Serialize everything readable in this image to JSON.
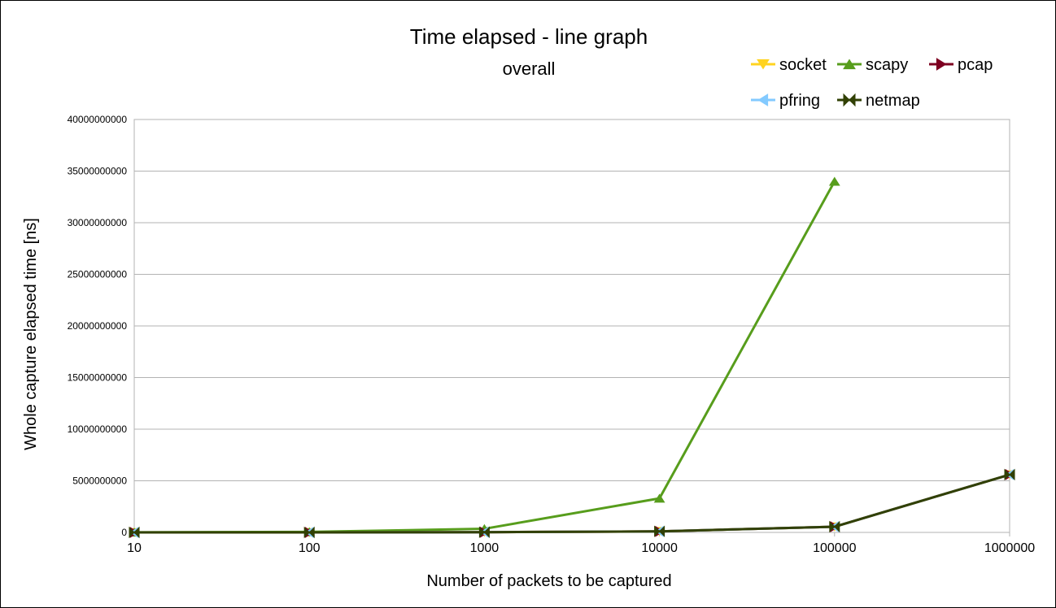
{
  "chart_data": {
    "type": "line",
    "title": "Time elapsed - line graph",
    "subtitle": "overall",
    "xlabel": "Number of packets to be captured",
    "ylabel": "Whole capture elapsed time [ns]",
    "categories": [
      "10",
      "100",
      "1000",
      "10000",
      "100000",
      "1000000"
    ],
    "ylim": [
      0,
      40000000000
    ],
    "yticks": [
      "0",
      "5000000000",
      "10000000000",
      "15000000000",
      "20000000000",
      "25000000000",
      "30000000000",
      "35000000000",
      "40000000000"
    ],
    "grid": true,
    "legend_position": "top-right",
    "series": [
      {
        "name": "socket",
        "color": "#ffd320",
        "marker": "triangle-down",
        "values": [
          0,
          0,
          20000000,
          100000000,
          550000000,
          5600000000
        ]
      },
      {
        "name": "scapy",
        "color": "#579d1c",
        "marker": "triangle-up",
        "values": [
          10000000,
          50000000,
          350000000,
          3300000000,
          34000000000,
          null
        ]
      },
      {
        "name": "pcap",
        "color": "#7e0021",
        "marker": "triangle-right",
        "values": [
          0,
          0,
          20000000,
          100000000,
          550000000,
          5600000000
        ]
      },
      {
        "name": "pfring",
        "color": "#83caff",
        "marker": "triangle-left",
        "values": [
          0,
          0,
          20000000,
          100000000,
          550000000,
          5600000000
        ]
      },
      {
        "name": "netmap",
        "color": "#314004",
        "marker": "bowtie",
        "values": [
          0,
          0,
          20000000,
          100000000,
          550000000,
          5600000000
        ]
      }
    ]
  }
}
